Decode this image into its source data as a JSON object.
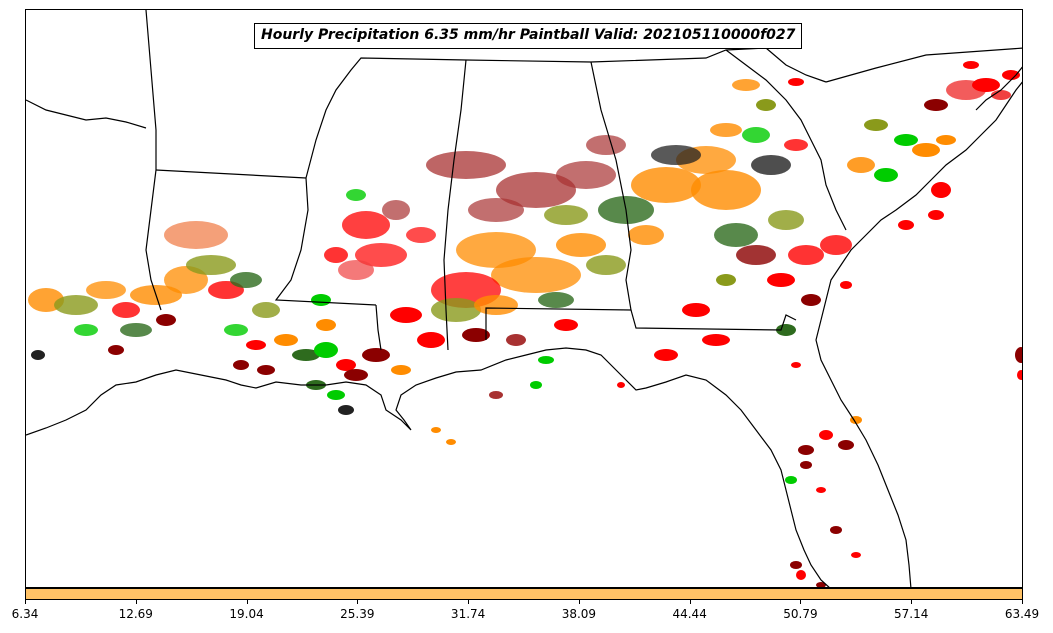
{
  "title": "Hourly Precipitation 6.35 mm/hr Paintball Valid: 202105110000f027",
  "colorbar": {
    "color": "#ffc266",
    "ticks": [
      "6.34",
      "12.69",
      "19.04",
      "25.39",
      "31.74",
      "38.09",
      "44.44",
      "50.79",
      "57.14",
      "63.49"
    ]
  },
  "palette": {
    "red": "#ff0000",
    "dark_red": "#8b0000",
    "orange": "#ff8c00",
    "green": "#00cc00",
    "dark_green": "#2e6b1e",
    "olive": "#8a9a1b",
    "black": "#222222",
    "light_red": "#f04040",
    "maroon": "#a83232"
  }
}
